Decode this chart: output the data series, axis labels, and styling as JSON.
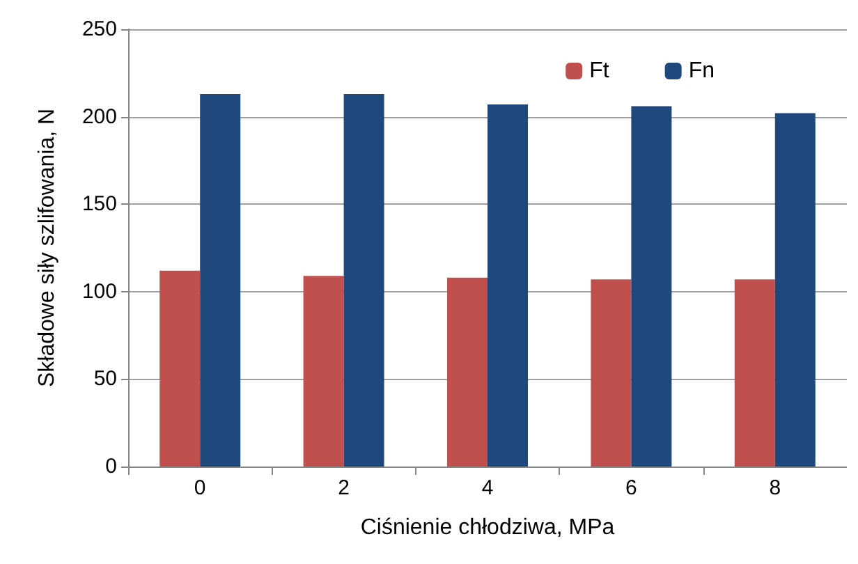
{
  "chart_data": {
    "type": "bar",
    "xlabel": "Ciśnienie chłodziwa, MPa",
    "ylabel": "Składowe siły szlifowania, N",
    "categories": [
      "0",
      "2",
      "4",
      "6",
      "8"
    ],
    "series": [
      {
        "name": "Ft",
        "color": "#c0504d",
        "values": [
          112,
          109,
          108,
          107,
          107
        ]
      },
      {
        "name": "Fn",
        "color": "#1f497d",
        "values": [
          213,
          213,
          207,
          206,
          202
        ]
      }
    ],
    "ylim": [
      0,
      250
    ],
    "yticks": [
      0,
      50,
      100,
      150,
      200,
      250
    ],
    "grid": "y",
    "legend": "top right"
  }
}
